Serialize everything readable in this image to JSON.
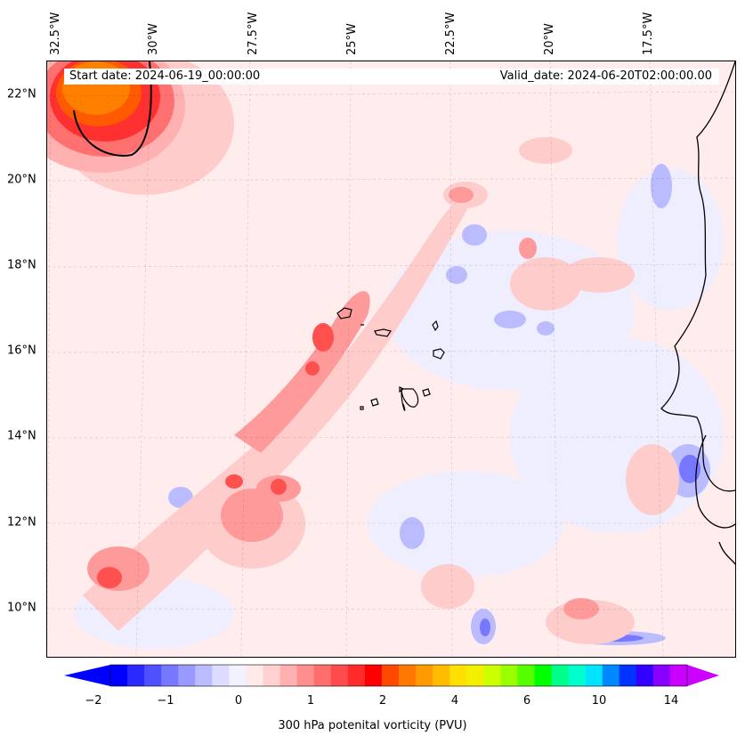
{
  "map": {
    "start_date": "Start date: 2024-06-19_00:00:00",
    "valid_date": "Valid_date: 2024-06-20T02:00:00.00",
    "longitude_labels": [
      "32.5°W",
      "30°W",
      "27.5°W",
      "25°W",
      "22.5°W",
      "20°W",
      "17.5°W"
    ],
    "latitude_labels": [
      "22°N",
      "20°N",
      "18°N",
      "16°N",
      "14°N",
      "12°N",
      "10°N"
    ],
    "variable": "300 hPa potenital vorticity (PVU)"
  },
  "colorbar": {
    "tick_labels": [
      "−2",
      "−1",
      "0",
      "1",
      "2",
      "4",
      "6",
      "10",
      "14"
    ],
    "colors": [
      "#0000ff",
      "#2a2aff",
      "#5050ff",
      "#7777ff",
      "#9999ff",
      "#bbbbff",
      "#dcdcff",
      "#f2f2ff",
      "#ffe9e9",
      "#ffd0d0",
      "#ffb0b0",
      "#ff8f8f",
      "#ff6d6d",
      "#ff4b4b",
      "#ff2a2a",
      "#ff0000",
      "#ff4a00",
      "#ff7800",
      "#ff9a00",
      "#ffbc00",
      "#ffe000",
      "#f2f000",
      "#ccff00",
      "#99ff00",
      "#55ff00",
      "#00ff00",
      "#00ff88",
      "#00ffcc",
      "#00e4ff",
      "#0088ff",
      "#0033ff",
      "#3300ff",
      "#8800ff",
      "#cc00ff"
    ],
    "under_color": "#0000ff",
    "over_color": "#cc00ff"
  }
}
